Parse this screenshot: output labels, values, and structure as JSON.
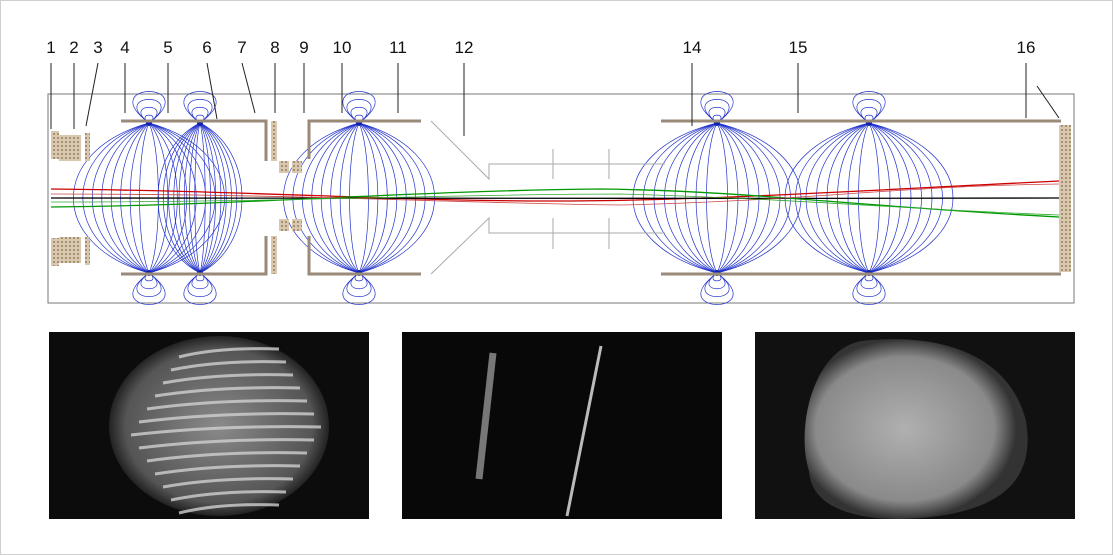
{
  "labels": [
    "1",
    "2",
    "3",
    "4",
    "5",
    "6",
    "7",
    "8",
    "9",
    "10",
    "11",
    "12",
    "14",
    "15",
    "16"
  ]
}
